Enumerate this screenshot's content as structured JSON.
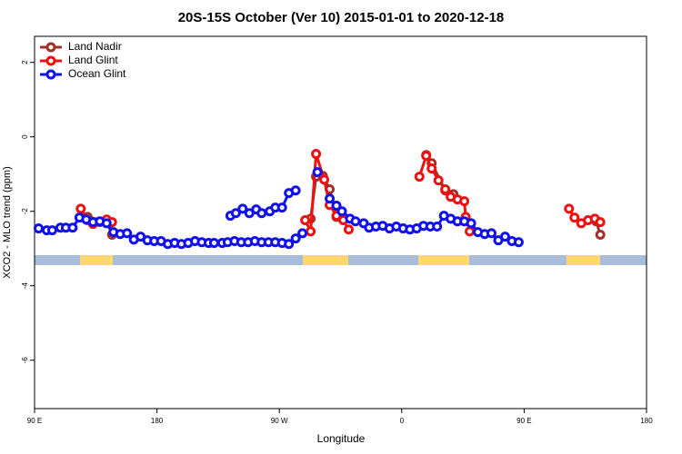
{
  "chart_data": {
    "type": "line",
    "title": "20S-15S October (Ver 10)   2015-01-01 to 2020-12-18",
    "xlabel": "Longitude",
    "ylabel": "XCO2 - MLO trend (ppm)",
    "xlim": [
      90,
      540
    ],
    "ylim": [
      -7.3,
      2.7
    ],
    "xticks": [
      {
        "value": 90,
        "label": "90 E"
      },
      180,
      {
        "value": 270,
        "label": "90 W"
      },
      {
        "value": 360,
        "label": "0"
      },
      {
        "value": 450,
        "label": "90 E"
      },
      {
        "value": 540,
        "label": "180"
      }
    ],
    "yticks": [
      2,
      0,
      -2,
      -4,
      -6
    ],
    "legend": "top-left",
    "series": [
      {
        "name": "Land Nadir",
        "color": "#a0302a",
        "x": [
          129,
          143,
          147,
          220,
          293,
          297,
          302,
          307,
          312,
          317,
          350,
          378,
          382,
          392,
          398,
          450,
          503,
          506
        ],
        "values": [
          -2.15,
          -2.27,
          -2.63,
          null,
          -2.2,
          -1.07,
          -1.05,
          -1.41,
          -2.15,
          -2.15,
          null,
          -0.49,
          -0.71,
          -1.44,
          -1.54,
          null,
          -2.27,
          -2.63
        ]
      },
      {
        "name": "Land Glint",
        "color": "#ee1111",
        "x": [
          124,
          129,
          133,
          138,
          143,
          147,
          220,
          289,
          293,
          297,
          303,
          307,
          312,
          317,
          321,
          350,
          373,
          378,
          382,
          387,
          392,
          396,
          401,
          406,
          407,
          410,
          450,
          483,
          487,
          492,
          497,
          502,
          506
        ],
        "values": [
          -1.93,
          -2.24,
          -2.34,
          -2.29,
          -2.22,
          -2.29,
          null,
          -2.24,
          -2.54,
          -0.46,
          -1.15,
          -1.83,
          -2.12,
          -2.24,
          -2.49,
          null,
          -1.07,
          -0.51,
          -0.85,
          -1.17,
          -1.41,
          -1.61,
          -1.68,
          -1.73,
          -2.15,
          -2.54,
          null,
          -1.93,
          -2.17,
          -2.32,
          -2.24,
          -2.2,
          -2.29
        ]
      },
      {
        "name": "Ocean Glint",
        "color": "#1111ee",
        "x": [
          93,
          99,
          103,
          109,
          113,
          118,
          123,
          128,
          133,
          138,
          143,
          148,
          153,
          158,
          163,
          168,
          173,
          178,
          183,
          188,
          193,
          198,
          203,
          208,
          213,
          218,
          222,
          228,
          232,
          237,
          242,
          247,
          252,
          257,
          262,
          267,
          272,
          277,
          282,
          287,
          260,
          234,
          238,
          243,
          248,
          253,
          257,
          263,
          267,
          272,
          277,
          282,
          290,
          298,
          302,
          307,
          312,
          316,
          322,
          326,
          332,
          336,
          341,
          346,
          351,
          356,
          361,
          366,
          371,
          376,
          381,
          386,
          391,
          396,
          401,
          406,
          411,
          416,
          421,
          426,
          431,
          436,
          441,
          446
        ],
        "values": [
          -2.46,
          -2.51,
          -2.51,
          -2.44,
          -2.44,
          -2.44,
          -2.17,
          -2.22,
          -2.29,
          -2.27,
          -2.32,
          -2.56,
          -2.61,
          -2.59,
          -2.76,
          -2.68,
          -2.78,
          -2.8,
          -2.8,
          -2.88,
          -2.85,
          -2.88,
          -2.85,
          -2.8,
          -2.83,
          -2.85,
          -2.85,
          -2.85,
          -2.83,
          -2.8,
          -2.83,
          -2.83,
          -2.8,
          -2.83,
          -2.83,
          -2.83,
          -2.85,
          -2.88,
          -2.73,
          -2.59,
          null,
          -2.12,
          -2.05,
          -1.93,
          -2.05,
          -1.95,
          -2.05,
          -2.0,
          -1.9,
          -1.9,
          -1.51,
          -1.44,
          null,
          -0.95,
          null,
          -1.66,
          -1.85,
          -2.0,
          -2.2,
          -2.27,
          -2.32,
          -2.44,
          -2.41,
          -2.39,
          -2.46,
          -2.41,
          -2.46,
          -2.49,
          -2.46,
          -2.39,
          -2.41,
          -2.41,
          -2.12,
          -2.2,
          -2.27,
          -2.27,
          -2.32,
          -2.56,
          -2.61,
          -2.59,
          -2.78,
          -2.68,
          -2.8,
          -2.83
        ]
      }
    ]
  }
}
